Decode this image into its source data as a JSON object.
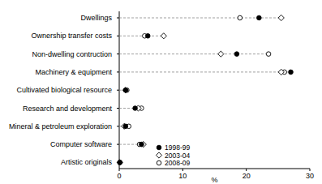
{
  "chart_data": {
    "type": "dot",
    "orientation": "horizontal",
    "xlabel": "%",
    "categories": [
      "Dwellings",
      "Ownership transfer costs",
      "Non-dwelling contruction",
      "Machinery & equipment",
      "Cultivated biological resource",
      "Research and development",
      "Mineral & petroleum exploration",
      "Computer software",
      "Artistic originals"
    ],
    "series": [
      {
        "name": "1998-99",
        "color": "#000000",
        "marker": "filled-circle",
        "values": [
          22,
          4.5,
          18.5,
          27,
          1,
          2.5,
          1,
          3.5,
          0.1
        ]
      },
      {
        "name": "2003-04",
        "color": "#000000",
        "marker": "open-diamond",
        "values": [
          25.5,
          7,
          16,
          25.5,
          1,
          3,
          0.8,
          3.8,
          0.1
        ]
      },
      {
        "name": "2008-09",
        "color": "#000000",
        "marker": "open-circle",
        "values": [
          19,
          4,
          23.5,
          26,
          1.2,
          3.5,
          1.5,
          3.2,
          0.1
        ]
      }
    ],
    "xlim": [
      0,
      30
    ],
    "xticks": [
      0,
      10,
      20,
      30
    ],
    "legend": "lower-left"
  }
}
